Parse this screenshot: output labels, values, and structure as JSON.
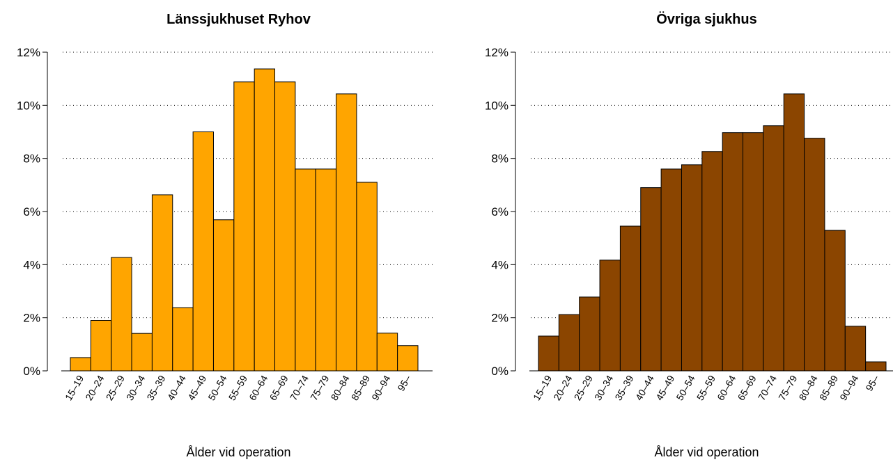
{
  "chart_data": [
    {
      "type": "bar",
      "title": "Länssjukhuset Ryhov",
      "x_label": "Ålder vid operation",
      "categories": [
        "15–19",
        "20–24",
        "25–29",
        "30–34",
        "35–39",
        "40–44",
        "45–49",
        "50–54",
        "55–59",
        "60–64",
        "65–69",
        "70–74",
        "75–79",
        "80–84",
        "85–89",
        "90–94",
        "95–"
      ],
      "values": [
        0.5,
        1.9,
        4.27,
        1.41,
        6.63,
        2.38,
        9.0,
        5.69,
        10.88,
        11.37,
        10.88,
        7.6,
        7.6,
        10.43,
        7.1,
        1.42,
        0.95
      ],
      "color": "#FFA500",
      "ylim": [
        0,
        12
      ],
      "yticks": [
        {
          "value": 0,
          "label": "0%"
        },
        {
          "value": 2,
          "label": "2%"
        },
        {
          "value": 4,
          "label": "4%"
        },
        {
          "value": 6,
          "label": "6%"
        },
        {
          "value": 8,
          "label": "8%"
        },
        {
          "value": 10,
          "label": "10%"
        },
        {
          "value": 12,
          "label": "12%"
        }
      ],
      "grid": true
    },
    {
      "type": "bar",
      "title": "Övriga sjukhus",
      "x_label": "Ålder vid operation",
      "categories": [
        "15–19",
        "20–24",
        "25–29",
        "30–34",
        "35–39",
        "40–44",
        "45–49",
        "50–54",
        "55–59",
        "60–64",
        "65–69",
        "70–74",
        "75–79",
        "80–84",
        "85–89",
        "90–94",
        "95–"
      ],
      "values": [
        1.31,
        2.12,
        2.78,
        4.17,
        5.45,
        6.9,
        7.6,
        7.76,
        8.26,
        8.97,
        8.97,
        9.23,
        10.43,
        8.76,
        5.29,
        1.68,
        0.34
      ],
      "color": "#8B4500",
      "ylim": [
        0,
        12
      ],
      "yticks": [
        {
          "value": 0,
          "label": "0%"
        },
        {
          "value": 2,
          "label": "2%"
        },
        {
          "value": 4,
          "label": "4%"
        },
        {
          "value": 6,
          "label": "6%"
        },
        {
          "value": 8,
          "label": "8%"
        },
        {
          "value": 10,
          "label": "10%"
        },
        {
          "value": 12,
          "label": "12%"
        }
      ],
      "grid": true
    }
  ]
}
